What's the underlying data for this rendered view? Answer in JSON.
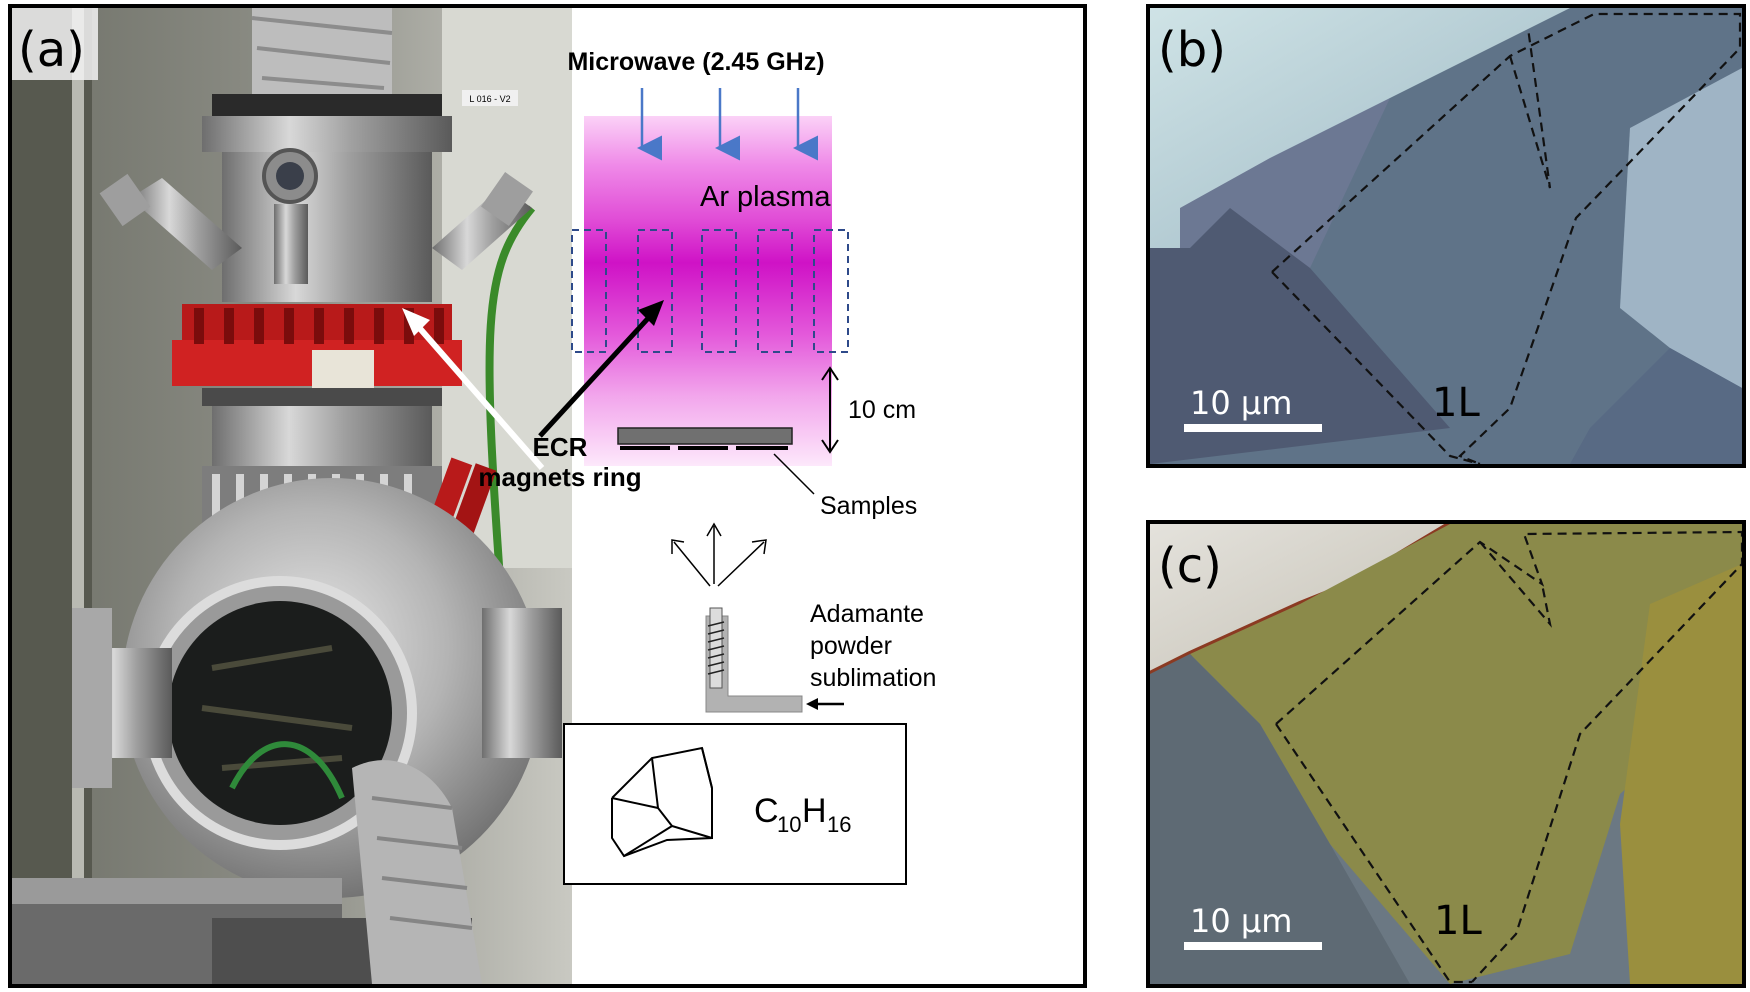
{
  "panels": {
    "a": {
      "label": "(a)",
      "microwave": "Microwave (2.45 GHz)",
      "plasma": "Ar plasma",
      "ecr_line1": "ECR",
      "ecr_line2": "magnets ring",
      "distance": "10 cm",
      "samples": "Samples",
      "adamante_line1": "Adamante",
      "adamante_line2": "powder",
      "adamante_line3": "sublimation",
      "formula_c": "C",
      "formula_c_sub": "10",
      "formula_h": "H",
      "formula_h_sub": "16",
      "flange_tag": "L 016 - V2"
    },
    "b": {
      "label": "(b)",
      "scale": "10 µm",
      "layer": "1L"
    },
    "c": {
      "label": "(c)",
      "scale": "10 µm",
      "layer": "1L"
    }
  },
  "colors": {
    "plasma_magenta": "#d21fc9",
    "arrow_blue": "#4a78c8",
    "ecr_red": "#c21b1b",
    "dashed_blue": "#2e4a8a"
  }
}
